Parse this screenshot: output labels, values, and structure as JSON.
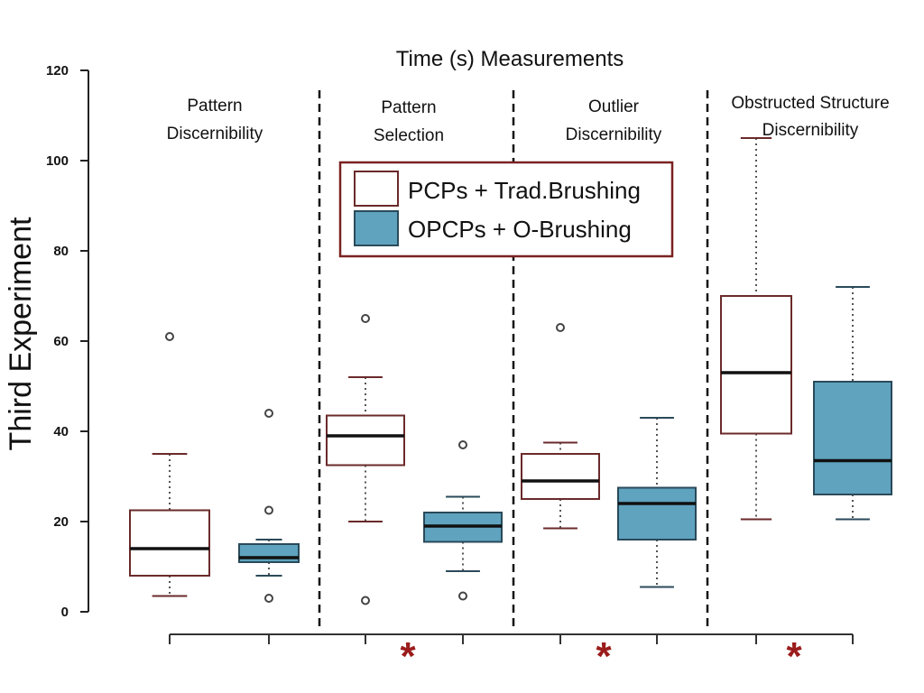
{
  "colors": {
    "pcp_fill": "#ffffff",
    "pcp_stroke": "#6b2a2a",
    "opcp_fill": "#5fa3bf",
    "opcp_stroke": "#2a4a5a",
    "median": "#111111",
    "whisker": "#555555",
    "legend_border": "#7a2222",
    "significance": "#9b1c1c"
  },
  "chart_data": {
    "type": "box",
    "title": "Time (s) Measurements",
    "ylabel": "Third Experiment",
    "ylim": [
      0,
      120
    ],
    "yticks": [
      0,
      20,
      40,
      60,
      80,
      100,
      120
    ],
    "legend": {
      "placement": "top-center",
      "entries": [
        {
          "name": "PCPs + Trad.Brushing",
          "color": "#ffffff"
        },
        {
          "name": "OPCPs + O-Brushing",
          "color": "#5fa3bf"
        }
      ]
    },
    "groups": [
      {
        "label_lines": [
          "Pattern",
          "Discernibility"
        ],
        "significant": false,
        "boxes": [
          {
            "series": "PCPs + Trad.Brushing",
            "min": 3.5,
            "q1": 8,
            "median": 14,
            "q3": 22.5,
            "max": 35,
            "outliers": [
              61
            ]
          },
          {
            "series": "OPCPs + O-Brushing",
            "min": 8,
            "q1": 11,
            "median": 12,
            "q3": 15,
            "max": 16,
            "outliers": [
              44,
              22.5,
              3
            ]
          }
        ]
      },
      {
        "label_lines": [
          "Pattern",
          "Selection"
        ],
        "significant": true,
        "boxes": [
          {
            "series": "PCPs + Trad.Brushing",
            "min": 20,
            "q1": 32.5,
            "median": 39,
            "q3": 43.5,
            "max": 52,
            "outliers": [
              65,
              2.5
            ]
          },
          {
            "series": "OPCPs + O-Brushing",
            "min": 9,
            "q1": 15.5,
            "median": 19,
            "q3": 22,
            "max": 25.5,
            "outliers": [
              37,
              3.5
            ]
          }
        ]
      },
      {
        "label_lines": [
          "Outlier",
          "Discernibility"
        ],
        "significant": true,
        "boxes": [
          {
            "series": "PCPs + Trad.Brushing",
            "min": 18.5,
            "q1": 25,
            "median": 29,
            "q3": 35,
            "max": 37.5,
            "outliers": [
              63
            ]
          },
          {
            "series": "OPCPs + O-Brushing",
            "min": 5.5,
            "q1": 16,
            "median": 24,
            "q3": 27.5,
            "max": 43,
            "outliers": []
          }
        ]
      },
      {
        "label_lines": [
          "Obstructed Structure",
          "Discernibility"
        ],
        "significant": true,
        "boxes": [
          {
            "series": "PCPs + Trad.Brushing",
            "min": 20.5,
            "q1": 39.5,
            "median": 53,
            "q3": 70,
            "max": 105,
            "outliers": []
          },
          {
            "series": "OPCPs + O-Brushing",
            "min": 20.5,
            "q1": 26,
            "median": 33.5,
            "q3": 51,
            "max": 72,
            "outliers": []
          }
        ]
      }
    ],
    "significance_marker": "*"
  }
}
